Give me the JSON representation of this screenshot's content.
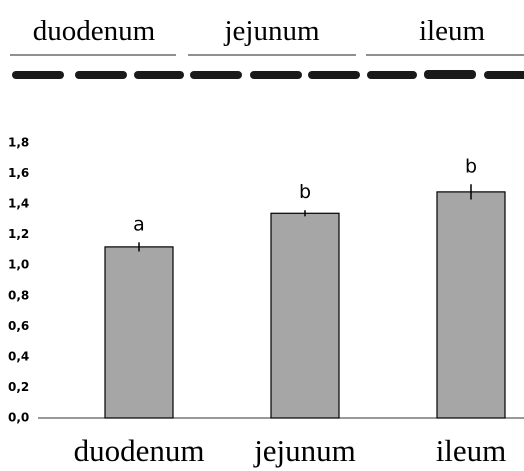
{
  "gel": {
    "labels": [
      "duodenum",
      "jejunum",
      "ileum"
    ]
  },
  "chart_data": {
    "type": "bar",
    "categories": [
      "duodenum",
      "jejunum",
      "ileum"
    ],
    "values": [
      1.12,
      1.34,
      1.48
    ],
    "errors": [
      0.03,
      0.02,
      0.05
    ],
    "letters": [
      "a",
      "b",
      "b"
    ],
    "color": "#a6a6a6",
    "ylim": [
      0,
      1.8
    ],
    "yticks": [
      {
        "value": 0,
        "label": "0,0"
      },
      {
        "value": 0.2,
        "label": "0,2"
      },
      {
        "value": 0.4,
        "label": "0,4"
      },
      {
        "value": 0.6,
        "label": "0,6"
      },
      {
        "value": 0.8,
        "label": "0,8"
      },
      {
        "value": 1.0,
        "label": "1,0"
      },
      {
        "value": 1.2,
        "label": "1,2"
      },
      {
        "value": 1.4,
        "label": "1,4"
      },
      {
        "value": 1.6,
        "label": "1,6"
      },
      {
        "value": 1.8,
        "label": "1,8"
      }
    ],
    "grid": false
  }
}
